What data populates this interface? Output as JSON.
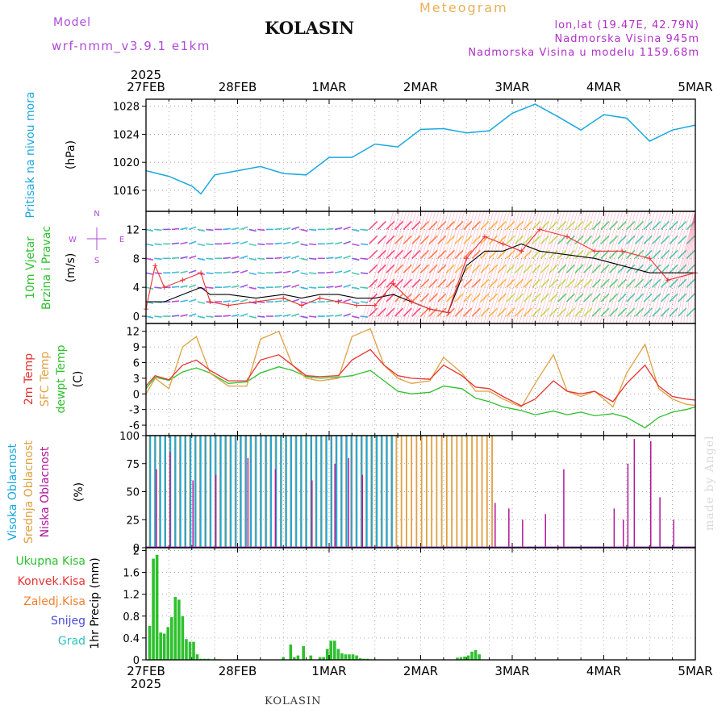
{
  "header": {
    "model_label": "Model",
    "model_version": "wrf-nmm_v3.9.1 e1km",
    "location": "KOLASIN",
    "title": "Meteogram",
    "lonlat": "lon,lat (19.47E, 42.79N)",
    "elevation": "Nadmorska Visina 945m",
    "elevation_model": "Nadmorska Visina u modelu 1159.68m",
    "credit": "made by Angel",
    "footer": "KOLASIN"
  },
  "colors": {
    "pressure": "#1aa8e0",
    "temp2m": "#e83232",
    "sfc_temp": "#e0a040",
    "dewpoint": "#2ec02e",
    "high_cloud": "#1aa8e0",
    "mid_cloud": "#e0a040",
    "low_cloud": "#b0189c",
    "precip_total": "#2ec02e",
    "precip_conv": "#e83232",
    "wind_speed": "#e83232",
    "wind_gust": "#000000",
    "wind_dir": "#b04ad8"
  },
  "chart_data": [
    {
      "type": "line",
      "panel": "pressure",
      "ylabel": [
        "Pritisak na nivou mora",
        "(hPa)"
      ],
      "ylim": [
        1013,
        1029
      ],
      "yticks": [
        1016,
        1020,
        1024,
        1028
      ],
      "x_days": [
        "27FEB",
        "28FEB",
        "1MAR",
        "2MAR",
        "3MAR",
        "4MAR",
        "5MAR"
      ],
      "x_top_year": "2025",
      "x": [
        0,
        0.25,
        0.5,
        0.6,
        0.75,
        1.0,
        1.25,
        1.5,
        1.75,
        2.0,
        2.25,
        2.5,
        2.75,
        3.0,
        3.25,
        3.5,
        3.75,
        4.0,
        4.25,
        4.5,
        4.75,
        5.0,
        5.25,
        5.5,
        5.75,
        6.0
      ],
      "series": [
        {
          "values": [
            1018.8,
            1018.0,
            1016.6,
            1015.5,
            1018.2,
            1018.8,
            1019.4,
            1018.4,
            1018.2,
            1020.7,
            1020.7,
            1022.6,
            1022.2,
            1024.7,
            1024.8,
            1024.2,
            1024.5,
            1027.0,
            1028.3,
            1026.5,
            1024.6,
            1026.8,
            1026.3,
            1023.0,
            1024.6,
            1025.3
          ]
        }
      ]
    },
    {
      "type": "line",
      "panel": "wind",
      "ylabel": [
        "10m Vjetar",
        "Brzina i Pravac",
        "(m/s)"
      ],
      "compass": [
        "N",
        "W",
        "E",
        "S"
      ],
      "ylim": [
        -1,
        14.5
      ],
      "yticks": [
        0,
        4,
        8,
        12
      ],
      "x": [
        0,
        0.1,
        0.2,
        0.4,
        0.6,
        0.7,
        0.9,
        1.2,
        1.5,
        1.7,
        1.9,
        2.1,
        2.3,
        2.5,
        2.7,
        2.9,
        3.1,
        3.3,
        3.5,
        3.7,
        3.9,
        4.1,
        4.3,
        4.6,
        4.9,
        5.2,
        5.5,
        5.7,
        6.0
      ],
      "series": [
        {
          "name": "speed",
          "values": [
            1,
            7,
            4,
            5,
            6,
            2,
            1.5,
            2,
            2.5,
            1.5,
            2.5,
            2,
            1.5,
            1.5,
            4.5,
            2,
            1,
            0.5,
            8,
            11,
            10,
            9,
            12,
            11,
            9,
            9,
            8,
            5,
            6
          ]
        },
        {
          "name": "gust",
          "values": [
            2,
            2,
            2,
            3,
            4,
            3,
            3,
            2.5,
            3,
            2.5,
            3,
            3,
            2.5,
            2.5,
            3,
            2,
            1,
            0.5,
            7,
            9,
            9,
            10,
            9,
            8.5,
            8,
            7,
            6,
            6,
            6
          ]
        }
      ]
    },
    {
      "type": "line",
      "panel": "temperature",
      "ylabel": [
        "2m Temp",
        "SFC Temp",
        "dewpt Temp",
        "(C)"
      ],
      "ylim": [
        -8,
        13.5
      ],
      "yticks": [
        -6,
        -3,
        0,
        3,
        6,
        9,
        12
      ],
      "x": [
        0,
        0.1,
        0.25,
        0.4,
        0.55,
        0.7,
        0.9,
        1.1,
        1.25,
        1.45,
        1.6,
        1.75,
        1.9,
        2.1,
        2.25,
        2.45,
        2.6,
        2.75,
        2.9,
        3.1,
        3.25,
        3.45,
        3.6,
        3.75,
        3.9,
        4.1,
        4.25,
        4.45,
        4.6,
        4.75,
        4.9,
        5.1,
        5.25,
        5.45,
        5.6,
        5.75,
        5.9,
        6.0
      ],
      "series": [
        {
          "name": "2m Temp",
          "values": [
            1.5,
            3.5,
            2.7,
            5.5,
            6.5,
            4.5,
            2.5,
            2.5,
            6.5,
            7.5,
            5.5,
            3.5,
            3.3,
            3.5,
            6.5,
            8.5,
            5.5,
            3.5,
            3.0,
            2.8,
            5.5,
            3.5,
            1.3,
            1.0,
            -0.5,
            -2.3,
            -1.0,
            2.5,
            0.5,
            0.0,
            0.5,
            -1.5,
            2.0,
            5.5,
            1.5,
            -0.5,
            -1.0,
            -1.2
          ]
        },
        {
          "name": "SFC Temp",
          "values": [
            0.0,
            3.0,
            1.0,
            9.0,
            11.0,
            4.0,
            1.5,
            1.5,
            10.5,
            12.0,
            5.5,
            3.0,
            2.5,
            3.0,
            11.0,
            12.5,
            5.5,
            3.0,
            2.0,
            2.5,
            7.0,
            4.0,
            0.5,
            0.5,
            -1.0,
            -2.5,
            2.0,
            7.5,
            0.5,
            -0.5,
            0.5,
            -2.5,
            4.0,
            9.5,
            1.0,
            -1.0,
            -2.0,
            -2.2
          ]
        },
        {
          "name": "dewpt Temp",
          "values": [
            1.0,
            3.2,
            2.6,
            4.2,
            5.0,
            4.0,
            2.0,
            2.3,
            4.0,
            5.2,
            4.5,
            3.3,
            3.0,
            3.2,
            3.5,
            4.5,
            2.5,
            0.5,
            0.0,
            0.3,
            1.5,
            1.0,
            -0.8,
            -1.5,
            -2.5,
            -3.2,
            -4.0,
            -3.3,
            -4.0,
            -3.5,
            -4.2,
            -3.8,
            -4.5,
            -6.5,
            -4.5,
            -3.5,
            -3.0,
            -2.5
          ]
        }
      ]
    },
    {
      "type": "bar",
      "panel": "cloud",
      "ylabel": [
        "Visoka Oblacnost",
        "Srednja Oblacnost",
        "Niska Oblacnost",
        "(%)"
      ],
      "ylim": [
        0,
        100
      ],
      "yticks": [
        0,
        25,
        50,
        75,
        100
      ],
      "series": [
        {
          "name": "Visoka Oblacnost",
          "from": 0.02,
          "to": 2.7,
          "step": 0.055,
          "value": 100
        },
        {
          "name": "Srednja Oblacnost",
          "from": 0.04,
          "to": 3.8,
          "step": 0.055,
          "value": 100
        },
        {
          "name": "Niska Oblacnost",
          "x": [
            0.1,
            0.25,
            0.5,
            0.75,
            1.1,
            1.4,
            1.8,
            2.05,
            2.2,
            2.35,
            3.8,
            3.95,
            4.1,
            4.35,
            4.55,
            5.1,
            5.2,
            5.25,
            5.32,
            5.5,
            5.6,
            5.75
          ],
          "values": [
            70,
            85,
            60,
            65,
            80,
            70,
            60,
            75,
            80,
            65,
            40,
            35,
            25,
            30,
            70,
            35,
            25,
            75,
            97,
            95,
            45,
            25
          ]
        }
      ]
    },
    {
      "type": "bar",
      "panel": "precip",
      "ylabel": [
        "1hr Precip (mm)"
      ],
      "legend": [
        "Ukupna Kisa",
        "Konvek.Kisa",
        "Zaledj.Kisa",
        "Snijeg",
        "Grad"
      ],
      "ylim": [
        0,
        2.05
      ],
      "yticks": [
        0,
        0.4,
        0.8,
        1.2,
        1.6,
        2
      ],
      "series": [
        {
          "name": "Ukupna Kisa",
          "x": [
            0.04,
            0.08,
            0.12,
            0.16,
            0.2,
            0.24,
            0.28,
            0.32,
            0.36,
            0.4,
            0.44,
            0.48,
            0.52,
            0.56,
            0.6,
            0.64,
            0.68,
            0.72,
            0.76,
            0.8,
            1.5,
            1.58,
            1.62,
            1.66,
            1.72,
            1.8,
            1.9,
            1.94,
            1.98,
            2.02,
            2.06,
            2.1,
            2.14,
            2.18,
            2.22,
            2.26,
            2.3,
            2.34,
            2.38,
            2.42,
            2.46,
            2.5,
            3.4,
            3.44,
            3.48,
            3.52,
            3.56,
            3.6,
            3.64
          ],
          "values": [
            0.62,
            1.85,
            1.92,
            0.5,
            0.48,
            0.6,
            0.78,
            1.15,
            1.1,
            0.8,
            0.38,
            0.33,
            0.33,
            0.1,
            0.02,
            0.02,
            0.02,
            0.01,
            0.01,
            0.01,
            0.05,
            0.28,
            0.05,
            0.08,
            0.25,
            0.08,
            0.05,
            0.05,
            0.2,
            0.35,
            0.35,
            0.2,
            0.12,
            0.1,
            0.1,
            0.1,
            0.08,
            0.03,
            0.02,
            0.02,
            0.01,
            0.01,
            0.04,
            0.05,
            0.06,
            0.08,
            0.15,
            0.18,
            0.1
          ]
        }
      ]
    }
  ]
}
